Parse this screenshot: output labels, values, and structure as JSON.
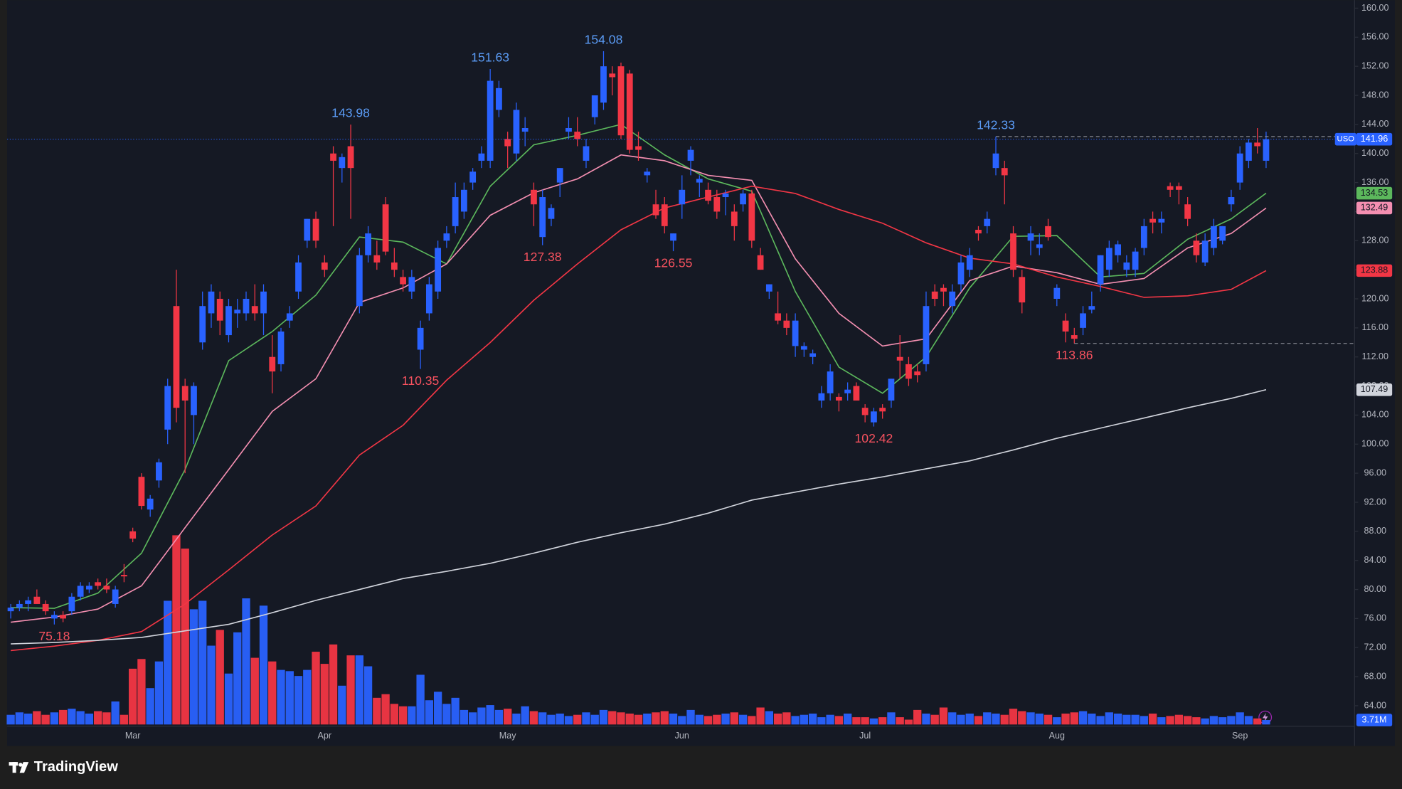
{
  "chart_data": {
    "type": "candlestick",
    "symbol": "USO",
    "up_color": "#2962ff",
    "down_color": "#f23645",
    "ylim": [
      64,
      160
    ],
    "vlim": [
      0,
      160
    ],
    "grid": false,
    "yticks": [
      {
        "value": 160,
        "label": "160.00"
      },
      {
        "value": 156,
        "label": "156.00"
      },
      {
        "value": 152,
        "label": "152.00"
      },
      {
        "value": 148,
        "label": "148.00"
      },
      {
        "value": 144,
        "label": "144.00"
      },
      {
        "value": 140,
        "label": "140.00"
      },
      {
        "value": 136,
        "label": "136.00"
      },
      {
        "value": 132,
        "label": "132.00"
      },
      {
        "value": 128,
        "label": "128.00"
      },
      {
        "value": 124,
        "label": "124.00"
      },
      {
        "value": 120,
        "label": "120.00"
      },
      {
        "value": 116,
        "label": "116.00"
      },
      {
        "value": 112,
        "label": "112.00"
      },
      {
        "value": 108,
        "label": "108.00"
      },
      {
        "value": 104,
        "label": "104.00"
      },
      {
        "value": 100,
        "label": "100.00"
      },
      {
        "value": 96,
        "label": "96.00"
      },
      {
        "value": 92,
        "label": "92.00"
      },
      {
        "value": 88,
        "label": "88.00"
      },
      {
        "value": 84,
        "label": "84.00"
      },
      {
        "value": 80,
        "label": "80.00"
      },
      {
        "value": 76,
        "label": "76.00"
      },
      {
        "value": 72,
        "label": "72.00"
      },
      {
        "value": 68,
        "label": "68.00"
      },
      {
        "value": 64,
        "label": "64.00"
      }
    ],
    "x_labels": [
      {
        "x": 14,
        "label": "Mar"
      },
      {
        "x": 36,
        "label": "Apr"
      },
      {
        "x": 57,
        "label": "May"
      },
      {
        "x": 77,
        "label": "Jun"
      },
      {
        "x": 98,
        "label": "Jul"
      },
      {
        "x": 120,
        "label": "Aug"
      },
      {
        "x": 141,
        "label": "Sep"
      }
    ],
    "open": [
      77,
      77.5,
      78,
      79,
      78,
      76,
      76.5,
      77,
      79,
      80,
      81,
      80.5,
      78,
      82,
      88,
      95.5,
      91,
      95,
      102,
      119,
      108,
      104,
      114,
      118,
      120,
      115,
      118,
      118,
      119,
      118,
      112,
      111,
      117,
      121,
      128,
      131,
      125,
      140,
      138,
      141,
      119,
      126,
      126,
      133,
      125,
      123,
      121,
      113,
      118,
      121,
      128,
      130,
      132,
      136,
      139,
      139,
      146,
      142,
      140,
      143,
      135,
      128.5,
      131,
      136,
      143,
      143,
      139,
      145,
      147,
      151,
      152,
      151,
      141,
      137,
      133,
      133,
      128,
      133,
      139,
      136,
      135,
      134,
      134,
      132,
      133,
      134.5,
      126,
      121,
      118,
      117,
      113.5,
      113,
      112,
      106,
      107,
      106.5,
      107,
      108,
      105,
      103,
      105,
      106,
      112,
      111,
      110,
      111,
      121,
      121.5,
      119,
      122,
      124,
      129.5,
      130,
      138,
      138,
      129,
      123,
      128,
      127,
      130,
      120,
      117,
      115,
      116,
      118.5,
      122,
      124,
      126,
      124,
      124,
      127,
      131,
      130.5,
      135.5,
      135.5,
      133,
      128,
      125,
      127,
      128,
      133,
      136,
      139,
      141.5,
      139
    ],
    "high": [
      78,
      78.5,
      79,
      80,
      78.5,
      77,
      77,
      79.5,
      81,
      81,
      81.5,
      81.5,
      80.5,
      83.5,
      88.5,
      96,
      93,
      98,
      109,
      124,
      109,
      108.5,
      121,
      122,
      121,
      120,
      120,
      121,
      122,
      122,
      115,
      116,
      119,
      126,
      131,
      132,
      126,
      141,
      140,
      143.98,
      127,
      130,
      128,
      134,
      127,
      124,
      124,
      117,
      123,
      128,
      130,
      136,
      136,
      138,
      141,
      151.63,
      150,
      143,
      147,
      145,
      136,
      135,
      133,
      138,
      145,
      145,
      142,
      148,
      154.08,
      152,
      152.5,
      151.5,
      143,
      138,
      135,
      134,
      129,
      137,
      141,
      137,
      136,
      135,
      135,
      133,
      135,
      135,
      127,
      122,
      121,
      118,
      118,
      114,
      113,
      108,
      111,
      107,
      108.5,
      108.5,
      105.5,
      105,
      105.5,
      109,
      115,
      112,
      111,
      121,
      122,
      122,
      122,
      126,
      127,
      130,
      132,
      142.33,
      139,
      130,
      124,
      130,
      129,
      131,
      122,
      118,
      116,
      119,
      121,
      126,
      128,
      128,
      126,
      127,
      131,
      132,
      132,
      136,
      136,
      134,
      129,
      129,
      131,
      130,
      135,
      141,
      142,
      143.5,
      143
    ],
    "low": [
      76,
      77,
      77,
      78,
      76.5,
      75.18,
      75.5,
      76.5,
      78.5,
      79.5,
      80,
      79.5,
      77.5,
      81,
      86.5,
      91,
      90,
      94,
      100,
      103,
      96,
      100,
      113,
      116,
      115,
      114,
      116,
      117,
      117,
      115,
      107,
      110,
      116,
      120,
      127,
      127,
      123,
      130,
      136,
      131,
      118,
      125,
      124,
      126,
      123,
      121,
      120,
      110.35,
      117,
      120,
      127,
      129,
      131,
      135,
      138,
      138,
      145,
      138,
      139,
      141,
      130,
      127.38,
      130,
      134,
      142,
      141,
      138,
      144,
      146,
      148,
      142,
      140,
      139,
      136,
      131,
      129,
      126.55,
      131,
      137,
      134,
      133,
      131,
      131.5,
      128,
      132,
      127,
      124,
      120,
      116.5,
      115,
      112,
      112,
      111,
      105,
      106,
      104.5,
      106,
      106,
      103,
      102.42,
      103.5,
      105,
      109,
      108,
      108.5,
      110,
      119,
      119,
      118,
      121,
      123,
      128,
      129,
      137,
      133,
      123,
      118,
      126,
      126,
      128,
      119,
      114,
      113.86,
      115,
      118,
      121,
      123,
      125,
      123,
      123,
      126,
      129,
      129,
      134,
      133,
      130,
      125,
      124.5,
      126,
      127.5,
      132,
      135,
      138,
      140,
      138
    ],
    "close": [
      77.5,
      78,
      78.5,
      78,
      77,
      76.5,
      76,
      79,
      80.5,
      80.5,
      80.5,
      80,
      80,
      81.8,
      87,
      91.5,
      92.5,
      97.5,
      108,
      105,
      106,
      108,
      119,
      121,
      117,
      119,
      118.5,
      120,
      118,
      121,
      110,
      115.5,
      118,
      125,
      131,
      128,
      124,
      139,
      139.5,
      138,
      126,
      129,
      125,
      126.5,
      124,
      122,
      123,
      116,
      122,
      127,
      129,
      134,
      135,
      137.5,
      140,
      150,
      149,
      141,
      146,
      143.5,
      133,
      134,
      132.5,
      138,
      143.5,
      142,
      141,
      148,
      152,
      150.5,
      142.5,
      140.5,
      140.5,
      137.5,
      131.5,
      130,
      129,
      135,
      140.5,
      136.5,
      133.5,
      132,
      134.5,
      130,
      134.5,
      128,
      124,
      122,
      117,
      116,
      117,
      113.5,
      112.5,
      107,
      110,
      106,
      107.5,
      106,
      104,
      104.5,
      104.5,
      109,
      111.5,
      109,
      109.5,
      119,
      120,
      121,
      121,
      125,
      126,
      129,
      131,
      140,
      137,
      124,
      119.5,
      129,
      127.5,
      128.5,
      121.5,
      115.5,
      114.5,
      118,
      119,
      126,
      127,
      127.5,
      125,
      126.5,
      130,
      130.5,
      131,
      135,
      135,
      131,
      126,
      128,
      130,
      130,
      134,
      140,
      141.5,
      141,
      141.96
    ],
    "volume": [
      8,
      10,
      9,
      11,
      8,
      10,
      12,
      13,
      11,
      9,
      11,
      10,
      19,
      8,
      46,
      54,
      30,
      52,
      102,
      156,
      145,
      95,
      102,
      65,
      78,
      42,
      76,
      104,
      55,
      98,
      52,
      45,
      44,
      40,
      45,
      60,
      50,
      66,
      32,
      57,
      57,
      48,
      22,
      25,
      17,
      15,
      15,
      41,
      20,
      27,
      17,
      22,
      12,
      10,
      14,
      16,
      12,
      13,
      9,
      15,
      11,
      10,
      8,
      9,
      7,
      8,
      10,
      8,
      12,
      11,
      10,
      9,
      8,
      9,
      10,
      11,
      9,
      7,
      12,
      8,
      7,
      8,
      9,
      10,
      8,
      7,
      14,
      11,
      9,
      10,
      7,
      8,
      9,
      6,
      8,
      7,
      9,
      6,
      6,
      5,
      6,
      10,
      6,
      4,
      12,
      9,
      8,
      14,
      10,
      8,
      9,
      7,
      10,
      9,
      8,
      13,
      11,
      10,
      9,
      8,
      6,
      9,
      10,
      11,
      9,
      7,
      10,
      9,
      8,
      8,
      7,
      9,
      6,
      7,
      8,
      7,
      6,
      5,
      7,
      6,
      7,
      10,
      7,
      5,
      3.71
    ],
    "last_volume_label": "3.71M",
    "series": [
      {
        "color": "#5cb85c",
        "x": [
          0,
          5,
          10,
          15,
          20,
          25,
          30,
          35,
          40,
          45,
          50,
          55,
          60,
          65,
          70,
          75,
          80,
          85,
          90,
          95,
          100,
          105,
          110,
          115,
          120,
          125,
          130,
          135,
          140,
          144
        ],
        "values": [
          77.5,
          77.4,
          79.5,
          85,
          96.5,
          111.5,
          115.5,
          120.5,
          128.5,
          127.8,
          124.8,
          135.5,
          141.2,
          142.5,
          144,
          139.8,
          136.5,
          134.8,
          121,
          110.6,
          107,
          112,
          121.5,
          128.6,
          128.7,
          123,
          123.5,
          128.2,
          131,
          134.53
        ]
      },
      {
        "color": "#f48fb1",
        "x": [
          0,
          5,
          10,
          15,
          20,
          25,
          30,
          35,
          40,
          45,
          50,
          55,
          60,
          65,
          70,
          75,
          80,
          85,
          90,
          95,
          100,
          105,
          110,
          115,
          120,
          125,
          130,
          135,
          140,
          144
        ],
        "values": [
          75.5,
          76.2,
          77.3,
          80.5,
          88.5,
          96.5,
          104.5,
          109,
          119.5,
          121.5,
          124.8,
          131.5,
          134.6,
          136.5,
          139.8,
          139,
          137,
          136.3,
          125.5,
          118,
          113.5,
          114.5,
          122.5,
          124.5,
          123.6,
          122,
          122.8,
          127,
          129,
          132.49
        ]
      },
      {
        "color": "#f23645",
        "x": [
          0,
          5,
          10,
          15,
          20,
          25,
          30,
          35,
          40,
          45,
          50,
          55,
          60,
          65,
          70,
          75,
          80,
          85,
          90,
          95,
          100,
          105,
          110,
          115,
          120,
          125,
          130,
          135,
          140,
          144
        ],
        "values": [
          71.6,
          72.2,
          73,
          74.2,
          78,
          82.7,
          87.5,
          91.5,
          98.5,
          102.6,
          108.8,
          114,
          119.8,
          124.8,
          129.5,
          132.5,
          134,
          135.5,
          134.5,
          132.3,
          130.4,
          127.7,
          125.6,
          124.8,
          123,
          121.7,
          120.2,
          120.4,
          121.3,
          123.88
        ]
      },
      {
        "color": "#d1d4dc",
        "x": [
          0,
          5,
          10,
          15,
          20,
          25,
          30,
          35,
          40,
          45,
          50,
          55,
          60,
          65,
          70,
          75,
          80,
          85,
          90,
          95,
          100,
          105,
          110,
          115,
          120,
          125,
          130,
          135,
          140,
          144
        ],
        "values": [
          72.5,
          72.7,
          73,
          73.4,
          74.3,
          75.2,
          76.8,
          78.5,
          80,
          81.5,
          82.5,
          83.6,
          85,
          86.5,
          87.8,
          89,
          90.5,
          92.3,
          93.4,
          94.5,
          95.5,
          96.6,
          97.7,
          99.2,
          100.8,
          102.2,
          103.6,
          105,
          106.3,
          107.49
        ]
      }
    ],
    "annotations": [
      {
        "x": 5,
        "label": "75.18",
        "kind": "low",
        "color": "#f7525f"
      },
      {
        "x": 39,
        "label": "143.98",
        "kind": "high",
        "color": "#5b9cf6"
      },
      {
        "x": 47,
        "label": "110.35",
        "kind": "low",
        "color": "#f7525f"
      },
      {
        "x": 55,
        "label": "151.63",
        "kind": "high",
        "color": "#5b9cf6"
      },
      {
        "x": 61,
        "label": "127.38",
        "kind": "low",
        "color": "#f7525f"
      },
      {
        "x": 68,
        "label": "154.08",
        "kind": "high",
        "color": "#5b9cf6"
      },
      {
        "x": 76,
        "label": "126.55",
        "kind": "low",
        "color": "#f7525f"
      },
      {
        "x": 99,
        "label": "102.42",
        "kind": "low",
        "color": "#f7525f"
      },
      {
        "x": 113,
        "label": "142.33",
        "kind": "high",
        "color": "#5b9cf6",
        "dashed": true
      },
      {
        "x": 122,
        "label": "113.86",
        "kind": "low",
        "color": "#f7525f",
        "dashed": true
      }
    ],
    "brand": "TradingView"
  }
}
